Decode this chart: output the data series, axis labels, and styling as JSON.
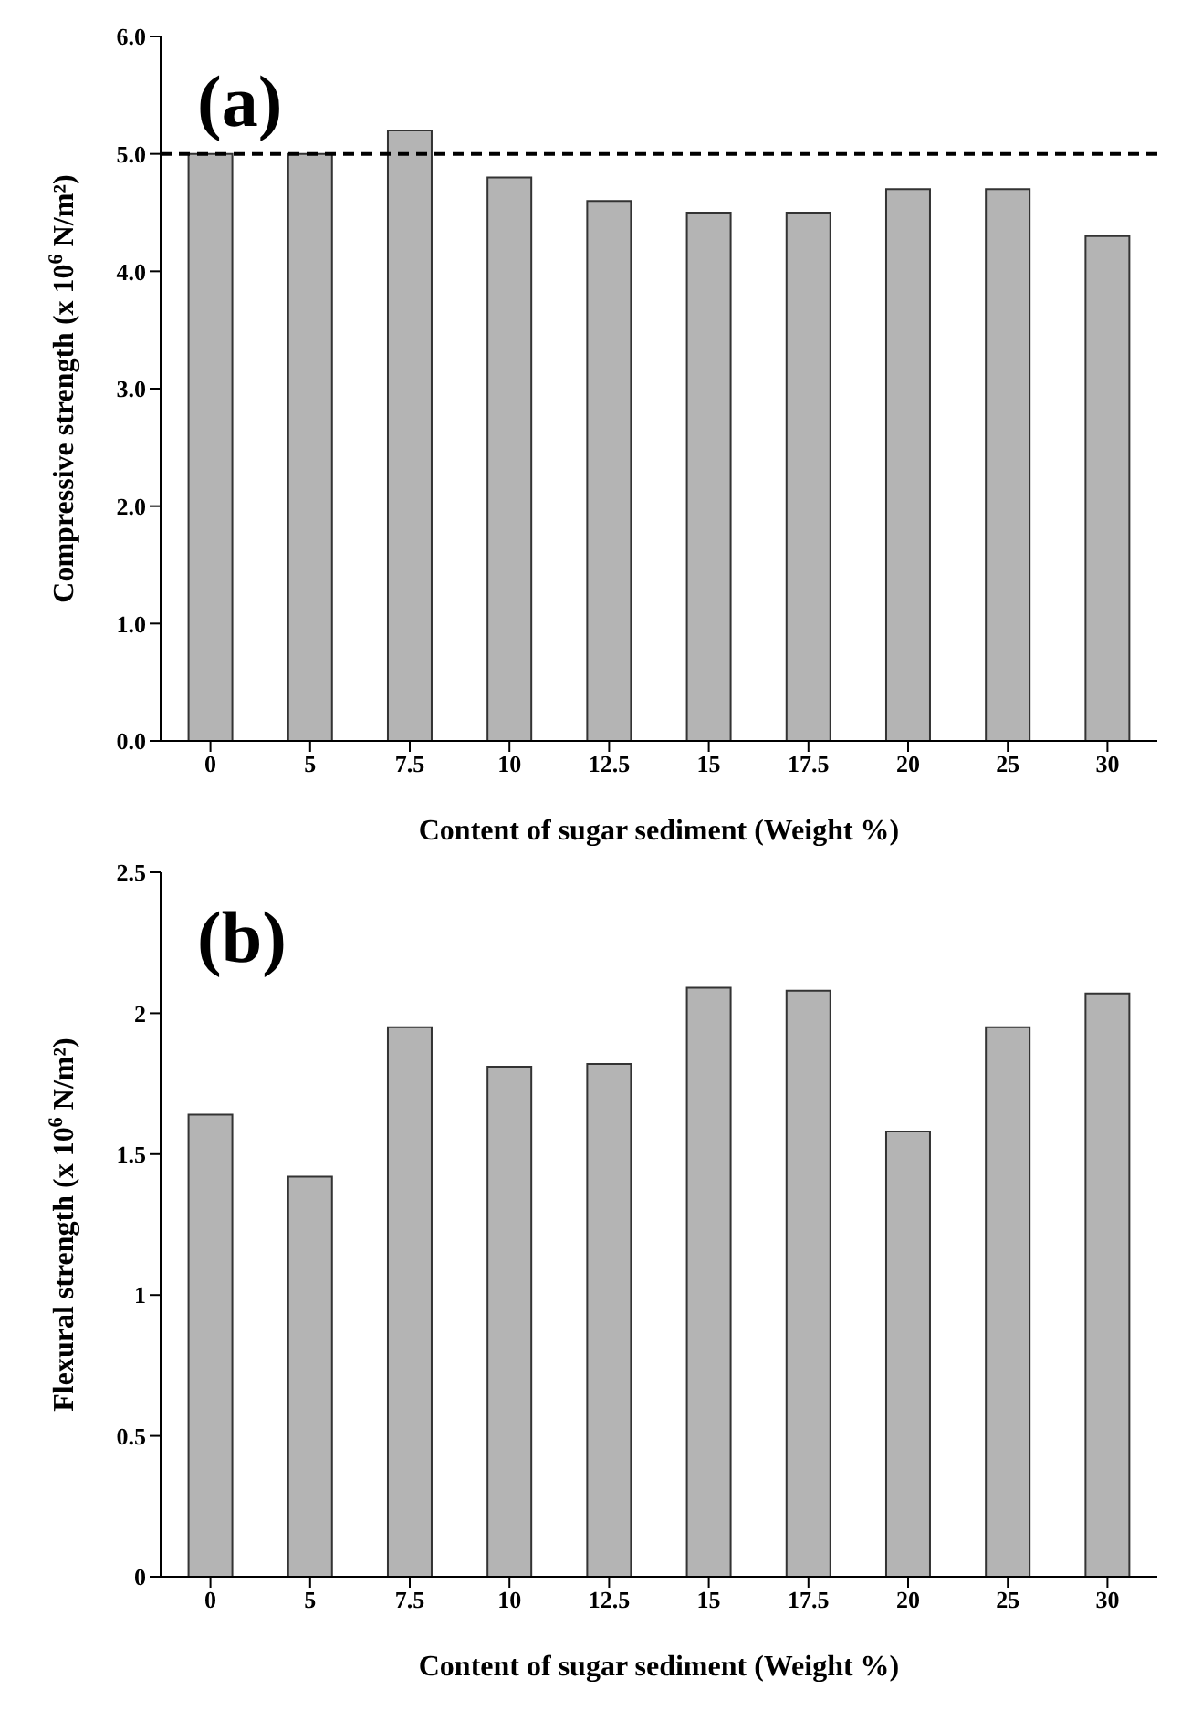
{
  "chart_data": [
    {
      "type": "bar",
      "annotations": [
        "(a)"
      ],
      "xlabel": "Content of sugar sediment (Weight %)",
      "ylabel": "Compressive strength (x 10$^{6}$ N/m²)",
      "categories": [
        "0",
        "5",
        "7.5",
        "10",
        "12.5",
        "15",
        "17.5",
        "20",
        "25",
        "30"
      ],
      "values": [
        5.0,
        5.0,
        5.2,
        4.8,
        4.6,
        4.5,
        4.5,
        4.7,
        4.7,
        4.3
      ],
      "color": "#b4b4b4",
      "ylim": [
        0,
        6
      ],
      "yticks": [
        {
          "value": 0,
          "label": "0.0"
        },
        {
          "value": 1,
          "label": "1.0"
        },
        {
          "value": 2,
          "label": "2.0"
        },
        {
          "value": 3,
          "label": "3.0"
        },
        {
          "value": 4,
          "label": "4.0"
        },
        {
          "value": 5,
          "label": "5.0"
        },
        {
          "value": 6,
          "label": "6.0"
        }
      ],
      "grid": false,
      "legend": false,
      "ref_lines": [
        {
          "axis": "y",
          "value": 5,
          "line_style": "dashed",
          "color": "#000000"
        }
      ]
    },
    {
      "type": "bar",
      "annotations": [
        "(b)"
      ],
      "xlabel": "Content of sugar sediment (Weight %)",
      "ylabel": "Flexural strength (x 10$^{6}$ N/m²)",
      "categories": [
        "0",
        "5",
        "7.5",
        "10",
        "12.5",
        "15",
        "17.5",
        "20",
        "25",
        "30"
      ],
      "values": [
        1.64,
        1.42,
        1.95,
        1.81,
        1.82,
        2.09,
        2.08,
        1.58,
        1.95,
        2.07
      ],
      "color": "#b4b4b4",
      "ylim": [
        0,
        2.5
      ],
      "yticks": [
        0,
        0.5,
        1,
        1.5,
        2,
        2.5
      ],
      "grid": false,
      "legend": false
    }
  ]
}
